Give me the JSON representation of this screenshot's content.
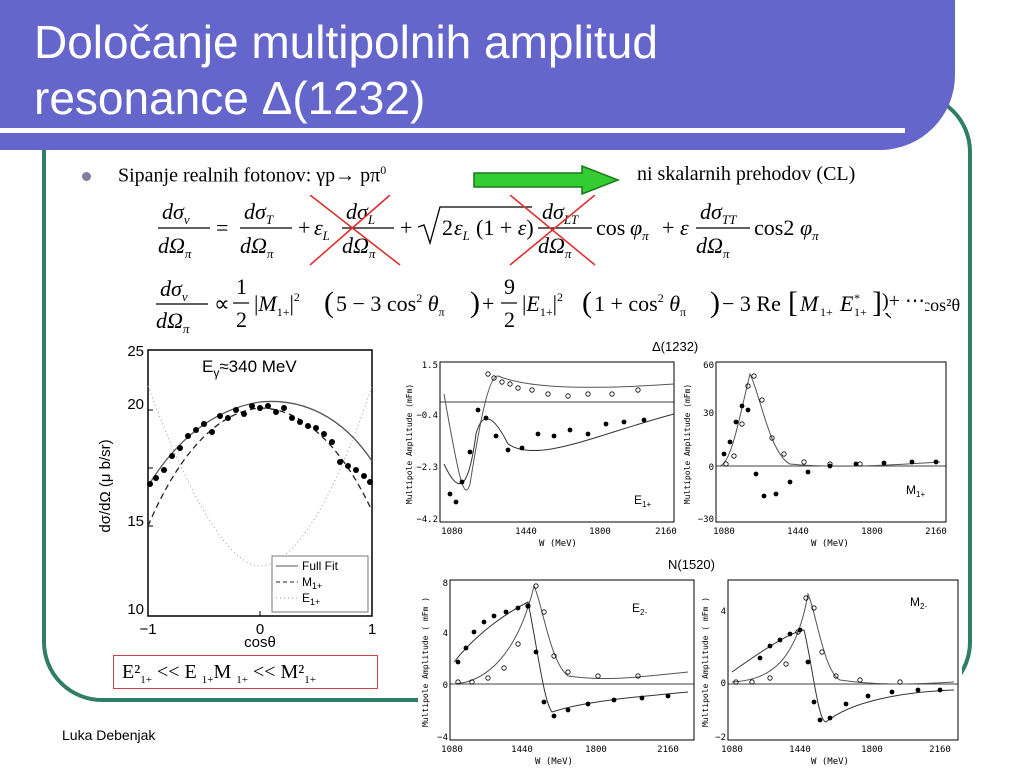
{
  "slide": {
    "title_line1": "Določanje multipolnih amplitud",
    "title_line2": "resonance Δ(1232)",
    "bullet_text": "Sipanje realnih fotonov: γp→ pπ",
    "bullet_sup": "0",
    "cl_text": "ni skalarnih prehodov (CL)",
    "author": "Luka Debenjak"
  },
  "ineq": {
    "a": "E²",
    "a_sub": "1+",
    "op1": " << E ",
    "b_sub": "1+",
    "b2": "M ",
    "b2_sub": "1+",
    "op2": " << M²",
    "c_sub": "1+"
  },
  "left_plot": {
    "label": "E",
    "label_sub": "γ",
    "label_rest": "≈340 MeV",
    "ylabel": "dσ/dΩ (μ b/sr)",
    "xlabel": "cosθ",
    "yticks": [
      "25",
      "20",
      "15",
      "10"
    ],
    "xticks": [
      "−1",
      "0",
      "1"
    ],
    "legend": [
      "Full Fit",
      "M",
      "E"
    ],
    "legend_sub": [
      "",
      "1+",
      "1+"
    ]
  },
  "delta_title": "Δ(1232)",
  "n_title": "N(1520)",
  "panels": {
    "e1p": {
      "label": "E",
      "sub": "1+",
      "yticks": [
        "1.5",
        "−0.4",
        "−2.3",
        "−4.2"
      ],
      "xticks": [
        "1080",
        "1440",
        "1800",
        "2160"
      ],
      "ylabel": "Multipole Amplitude (mFm)",
      "xlabel": "W (MeV)"
    },
    "m1p": {
      "label": "M",
      "sub": "1+",
      "yticks": [
        "60",
        "30",
        "0",
        "−30"
      ],
      "xticks": [
        "1080",
        "1440",
        "1800",
        "2160"
      ],
      "ylabel": "Multipole Amplitude (mFm)",
      "xlabel": "W (MeV)"
    },
    "e2m": {
      "label": "E",
      "sub": "2-",
      "yticks": [
        "8",
        "4",
        "0",
        "−4"
      ],
      "xticks": [
        "1080",
        "1440",
        "1800",
        "2160"
      ],
      "ylabel": "Multipole Amplitude ( mFm )",
      "xlabel": "W (MeV)"
    },
    "m2m": {
      "label": "M",
      "sub": "2-",
      "yticks": [
        "4",
        "0",
        "−2"
      ],
      "xticks": [
        "1080",
        "1440",
        "1800",
        "2160"
      ],
      "ylabel": "Multipole Amplitude ( mFm )",
      "xlabel": "W (MeV)"
    }
  },
  "colors": {
    "title_bg": "#6466cc",
    "frame": "#2e7d64",
    "arrow": "#33cc33",
    "cross": "#e03030"
  }
}
